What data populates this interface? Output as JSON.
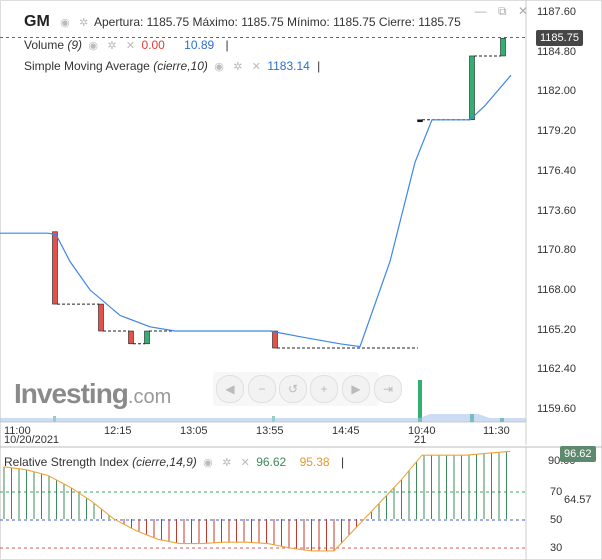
{
  "header": {
    "ticker": "GM",
    "open_label": "Apertura:",
    "open": "1185.75",
    "high_label": "Máximo:",
    "high": "1185.75",
    "low_label": "Mínimo:",
    "low": "1185.75",
    "close_label": "Cierre:",
    "close": "1185.75"
  },
  "volume": {
    "label": "Volume",
    "param": "(9)",
    "value_a": "0.00",
    "value_b": "10.89"
  },
  "sma": {
    "label": "Simple Moving Average",
    "param": "(cierre,10)",
    "value": "1183.14"
  },
  "rsi": {
    "label": "Relative Strength Index",
    "param": "(cierre,14,9)",
    "value_a": "96.62",
    "value_b": "95.38",
    "tag": "96.62",
    "ticks": [
      "90.00",
      "70",
      "64.57",
      "50",
      "30"
    ]
  },
  "price_tag": "1185.75",
  "y_axis": [
    "1187.60",
    "1184.80",
    "1182.00",
    "1179.20",
    "1176.40",
    "1173.60",
    "1170.80",
    "1168.00",
    "1165.20",
    "1162.40",
    "1159.60"
  ],
  "x_axis": [
    "11:00",
    "12:15",
    "13:05",
    "13:55",
    "14:45",
    "10:40",
    "11:30"
  ],
  "x_sub": [
    "10/20/2021",
    "21"
  ],
  "logo": {
    "main": "Investing",
    "suffix": ".com"
  },
  "icons": {
    "legend_controls": [
      "eye-icon",
      "gear-icon",
      "close-icon"
    ],
    "top_controls": [
      "minus-icon",
      "restore-icon",
      "close-icon"
    ],
    "nav": [
      "scroll-left-icon",
      "zoom-out-icon",
      "zoom-reset-icon",
      "zoom-in-icon",
      "scroll-right-icon",
      "go-end-icon"
    ]
  },
  "chart_data": [
    {
      "type": "candlestick",
      "title": "GM",
      "ylim": [
        1158.2,
        1188.6
      ],
      "y_ticks": [
        1187.6,
        1184.8,
        1182.0,
        1179.2,
        1176.4,
        1173.6,
        1170.8,
        1168.0,
        1165.2,
        1162.4,
        1159.6
      ],
      "candles": [
        {
          "o": 1172.1,
          "c": 1167.0,
          "color": "#e4514a"
        },
        {
          "o": 1167.0,
          "c": 1165.1,
          "color": "#e4514a"
        },
        {
          "o": 1165.1,
          "c": 1164.2,
          "color": "#e4514a"
        },
        {
          "o": 1164.2,
          "c": 1165.1,
          "color": "#31b071"
        },
        {
          "o": 1165.1,
          "c": 1163.9,
          "color": "#e4514a"
        },
        {
          "o": 1180.0,
          "c": 1180.0,
          "color": "#111111"
        },
        {
          "o": 1180.0,
          "c": 1184.5,
          "color": "#31b071"
        },
        {
          "o": 1184.5,
          "c": 1185.75,
          "color": "#31b071"
        }
      ],
      "sma_series": {
        "name": "Simple Moving Average",
        "values": [
          1172.0,
          1172.0,
          1171.9,
          1170.0,
          1168.0,
          1166.2,
          1165.4,
          1165.1,
          1165.1,
          1164.7,
          1164.2,
          1164.0,
          1170.0,
          1177.0,
          1180.0,
          1180.0,
          1181.0,
          1183.14
        ]
      }
    },
    {
      "type": "bar",
      "title": "Relative Strength Index",
      "ylim": [
        20,
        96
      ],
      "reference_lines": [
        70,
        50,
        30
      ],
      "rsi_line": [
        86,
        84,
        80,
        72,
        62,
        50,
        42,
        36,
        33,
        33,
        34,
        34,
        33,
        30,
        28,
        28,
        44,
        60,
        76,
        94,
        94,
        94,
        95.38,
        96.62
      ]
    }
  ]
}
